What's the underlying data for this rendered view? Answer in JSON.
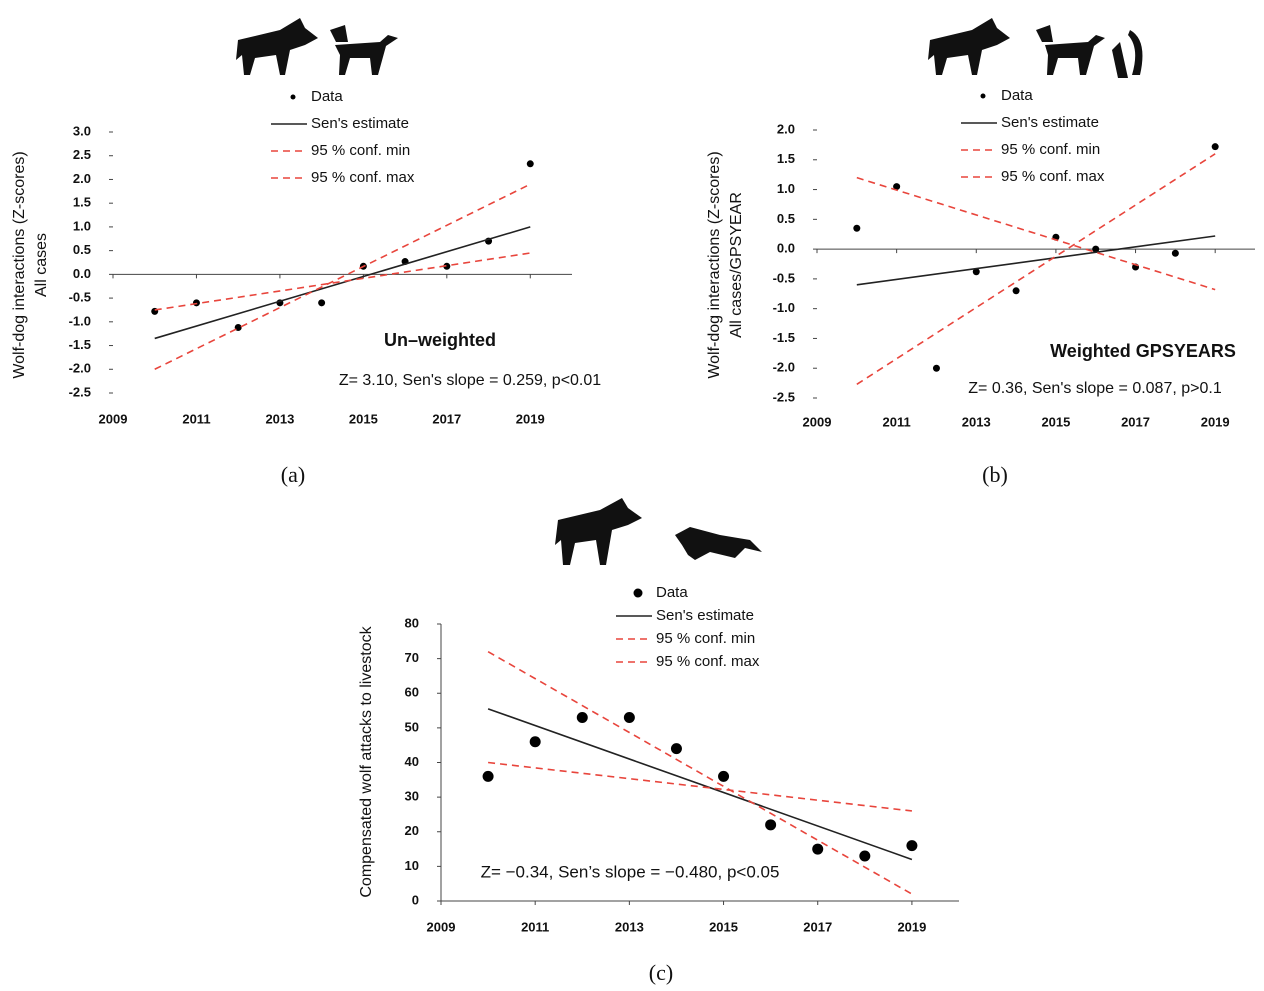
{
  "chart_data": [
    {
      "type": "scatter",
      "panel_label": "(a)",
      "y_label": [
        "Wolf-dog interactions (Z-scores)",
        "All cases"
      ],
      "annotations": [
        "Un–weighted",
        "Z= 3.10, Sen's slope = 0.259, p<0.01"
      ],
      "xlim": [
        2009,
        2020
      ],
      "xticks": [
        2009,
        2011,
        2013,
        2015,
        2017,
        2019
      ],
      "ylim": [
        -2.5,
        3.0
      ],
      "yticks": [
        {
          "value": 3,
          "label": "3.0"
        },
        {
          "value": 2.5,
          "label": "2.5"
        },
        {
          "value": 2,
          "label": "2.0"
        },
        {
          "value": 1.5,
          "label": "1.5"
        },
        {
          "value": 1,
          "label": "1.0"
        },
        {
          "value": 0.5,
          "label": "0.5"
        },
        {
          "value": 0,
          "label": "0.0"
        },
        {
          "value": -0.5,
          "label": "-0.5"
        },
        {
          "value": -1,
          "label": "-1.0"
        },
        {
          "value": -1.5,
          "label": "-1.5"
        },
        {
          "value": -2,
          "label": "-2.0"
        },
        {
          "value": -2.5,
          "label": "-2.5"
        }
      ],
      "series": [
        {
          "name": "Data",
          "color": "#000000",
          "style": "markers",
          "x": [
            2010,
            2011,
            2012,
            2013,
            2014,
            2015,
            2016,
            2017,
            2018,
            2019
          ],
          "values": [
            -0.78,
            -0.6,
            -1.12,
            -0.6,
            -0.6,
            0.17,
            0.27,
            0.17,
            0.7,
            2.33
          ]
        },
        {
          "name": "Sen's estimate",
          "color": "#222222",
          "style": "solid",
          "x": [
            2010,
            2019
          ],
          "values": [
            -1.35,
            1.0
          ]
        },
        {
          "name": "95 % conf. min",
          "color": "#e8453c",
          "style": "dashed",
          "x": [
            2010,
            2019
          ],
          "values": [
            -0.75,
            0.45
          ]
        },
        {
          "name": "95 % conf. max",
          "color": "#e8453c",
          "style": "dashed",
          "x": [
            2010,
            2019
          ],
          "values": [
            -2.0,
            1.9
          ]
        }
      ]
    },
    {
      "type": "scatter",
      "panel_label": "(b)",
      "y_label": [
        "Wolf-dog interactions (Z-scores)",
        "All cases/GPSYEAR"
      ],
      "annotations": [
        "Weighted  GPSYEARS",
        "Z= 0.36, Sen's slope = 0.087, p>0.1"
      ],
      "xlim": [
        2009,
        2020
      ],
      "xticks": [
        2009,
        2011,
        2013,
        2015,
        2017,
        2019
      ],
      "ylim": [
        -2.5,
        2.0
      ],
      "yticks": [
        {
          "value": 2,
          "label": "2.0"
        },
        {
          "value": 1.5,
          "label": "1.5"
        },
        {
          "value": 1,
          "label": "1.0"
        },
        {
          "value": 0.5,
          "label": "0.5"
        },
        {
          "value": 0,
          "label": "0.0"
        },
        {
          "value": -0.5,
          "label": "-0.5"
        },
        {
          "value": -1,
          "label": "-1.0"
        },
        {
          "value": -1.5,
          "label": "-1.5"
        },
        {
          "value": -2,
          "label": "-2.0"
        },
        {
          "value": -2.5,
          "label": "-2.5"
        }
      ],
      "series": [
        {
          "name": "Data",
          "color": "#000000",
          "style": "markers",
          "x": [
            2010,
            2011,
            2012,
            2013,
            2014,
            2015,
            2016,
            2017,
            2018,
            2019
          ],
          "values": [
            0.35,
            1.05,
            -2.0,
            -0.38,
            -0.7,
            0.2,
            0.0,
            -0.3,
            -0.07,
            1.72
          ]
        },
        {
          "name": "Sen's estimate",
          "color": "#222222",
          "style": "solid",
          "x": [
            2010,
            2019
          ],
          "values": [
            -0.6,
            0.22
          ]
        },
        {
          "name": "95 % conf. min",
          "color": "#e8453c",
          "style": "dashed",
          "x": [
            2010,
            2019
          ],
          "values": [
            1.2,
            -0.68
          ]
        },
        {
          "name": "95 % conf. max",
          "color": "#e8453c",
          "style": "dashed",
          "x": [
            2010,
            2019
          ],
          "values": [
            -2.27,
            1.6
          ]
        }
      ]
    },
    {
      "type": "scatter",
      "panel_label": "(c)",
      "y_label": [
        "Compensated wolf attacks to livestock"
      ],
      "annotations": [
        "Z= −0.34, Sen’s slope = −0.480, p<0.05"
      ],
      "xlim": [
        2009,
        2020
      ],
      "xticks": [
        2009,
        2011,
        2013,
        2015,
        2017,
        2019
      ],
      "ylim": [
        0,
        80
      ],
      "yticks": [
        0,
        10,
        20,
        30,
        40,
        50,
        60,
        70,
        80
      ],
      "series": [
        {
          "name": "Data",
          "color": "#000000",
          "style": "markers",
          "x": [
            2010,
            2011,
            2012,
            2013,
            2014,
            2015,
            2016,
            2017,
            2018,
            2019
          ],
          "values": [
            36,
            46,
            53,
            53,
            44,
            36,
            22,
            15,
            13,
            16
          ]
        },
        {
          "name": "Sen's estimate",
          "color": "#222222",
          "style": "solid",
          "x": [
            2010,
            2019
          ],
          "values": [
            55.5,
            12
          ]
        },
        {
          "name": "95 % conf. min",
          "color": "#e8453c",
          "style": "dashed",
          "x": [
            2010,
            2019
          ],
          "values": [
            40,
            26
          ]
        },
        {
          "name": "95 % conf. max",
          "color": "#e8453c",
          "style": "dashed",
          "x": [
            2010,
            2019
          ],
          "values": [
            72,
            2
          ]
        }
      ]
    }
  ]
}
